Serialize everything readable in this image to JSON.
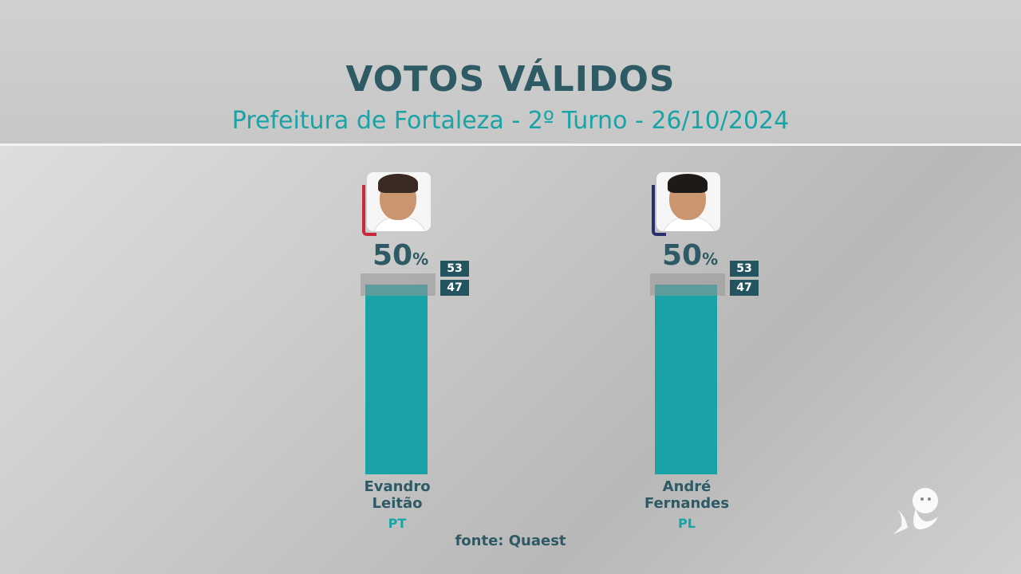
{
  "header": {
    "title": "VOTOS VÁLIDOS",
    "subtitle": "Prefeitura de Fortaleza - 2º Turno - 26/10/2024"
  },
  "chart_data": {
    "type": "bar",
    "categories": [
      "Evandro Leitão",
      "André Fernandes"
    ],
    "values": [
      50,
      50
    ],
    "ylim": [
      0,
      50
    ],
    "candidates": [
      {
        "name_line1": "Evandro",
        "name_line2": "Leitão",
        "party": "PT",
        "value": 50,
        "value_label": "50",
        "unit": "%",
        "margin_high": "53",
        "margin_low": "47",
        "accent_color": "#c8283a",
        "hair_color": "#3b2a22"
      },
      {
        "name_line1": "André",
        "name_line2": "Fernandes",
        "party": "PL",
        "value": 50,
        "value_label": "50",
        "unit": "%",
        "margin_high": "53",
        "margin_low": "47",
        "accent_color": "#2b2f6e",
        "hair_color": "#1e1a18"
      }
    ]
  },
  "footer": {
    "source": "fonte: Quaest"
  },
  "colors": {
    "bar": "#1aa3a7",
    "title": "#2e5a66",
    "subtitle": "#1aa3a7",
    "range_box": "#24545f"
  }
}
